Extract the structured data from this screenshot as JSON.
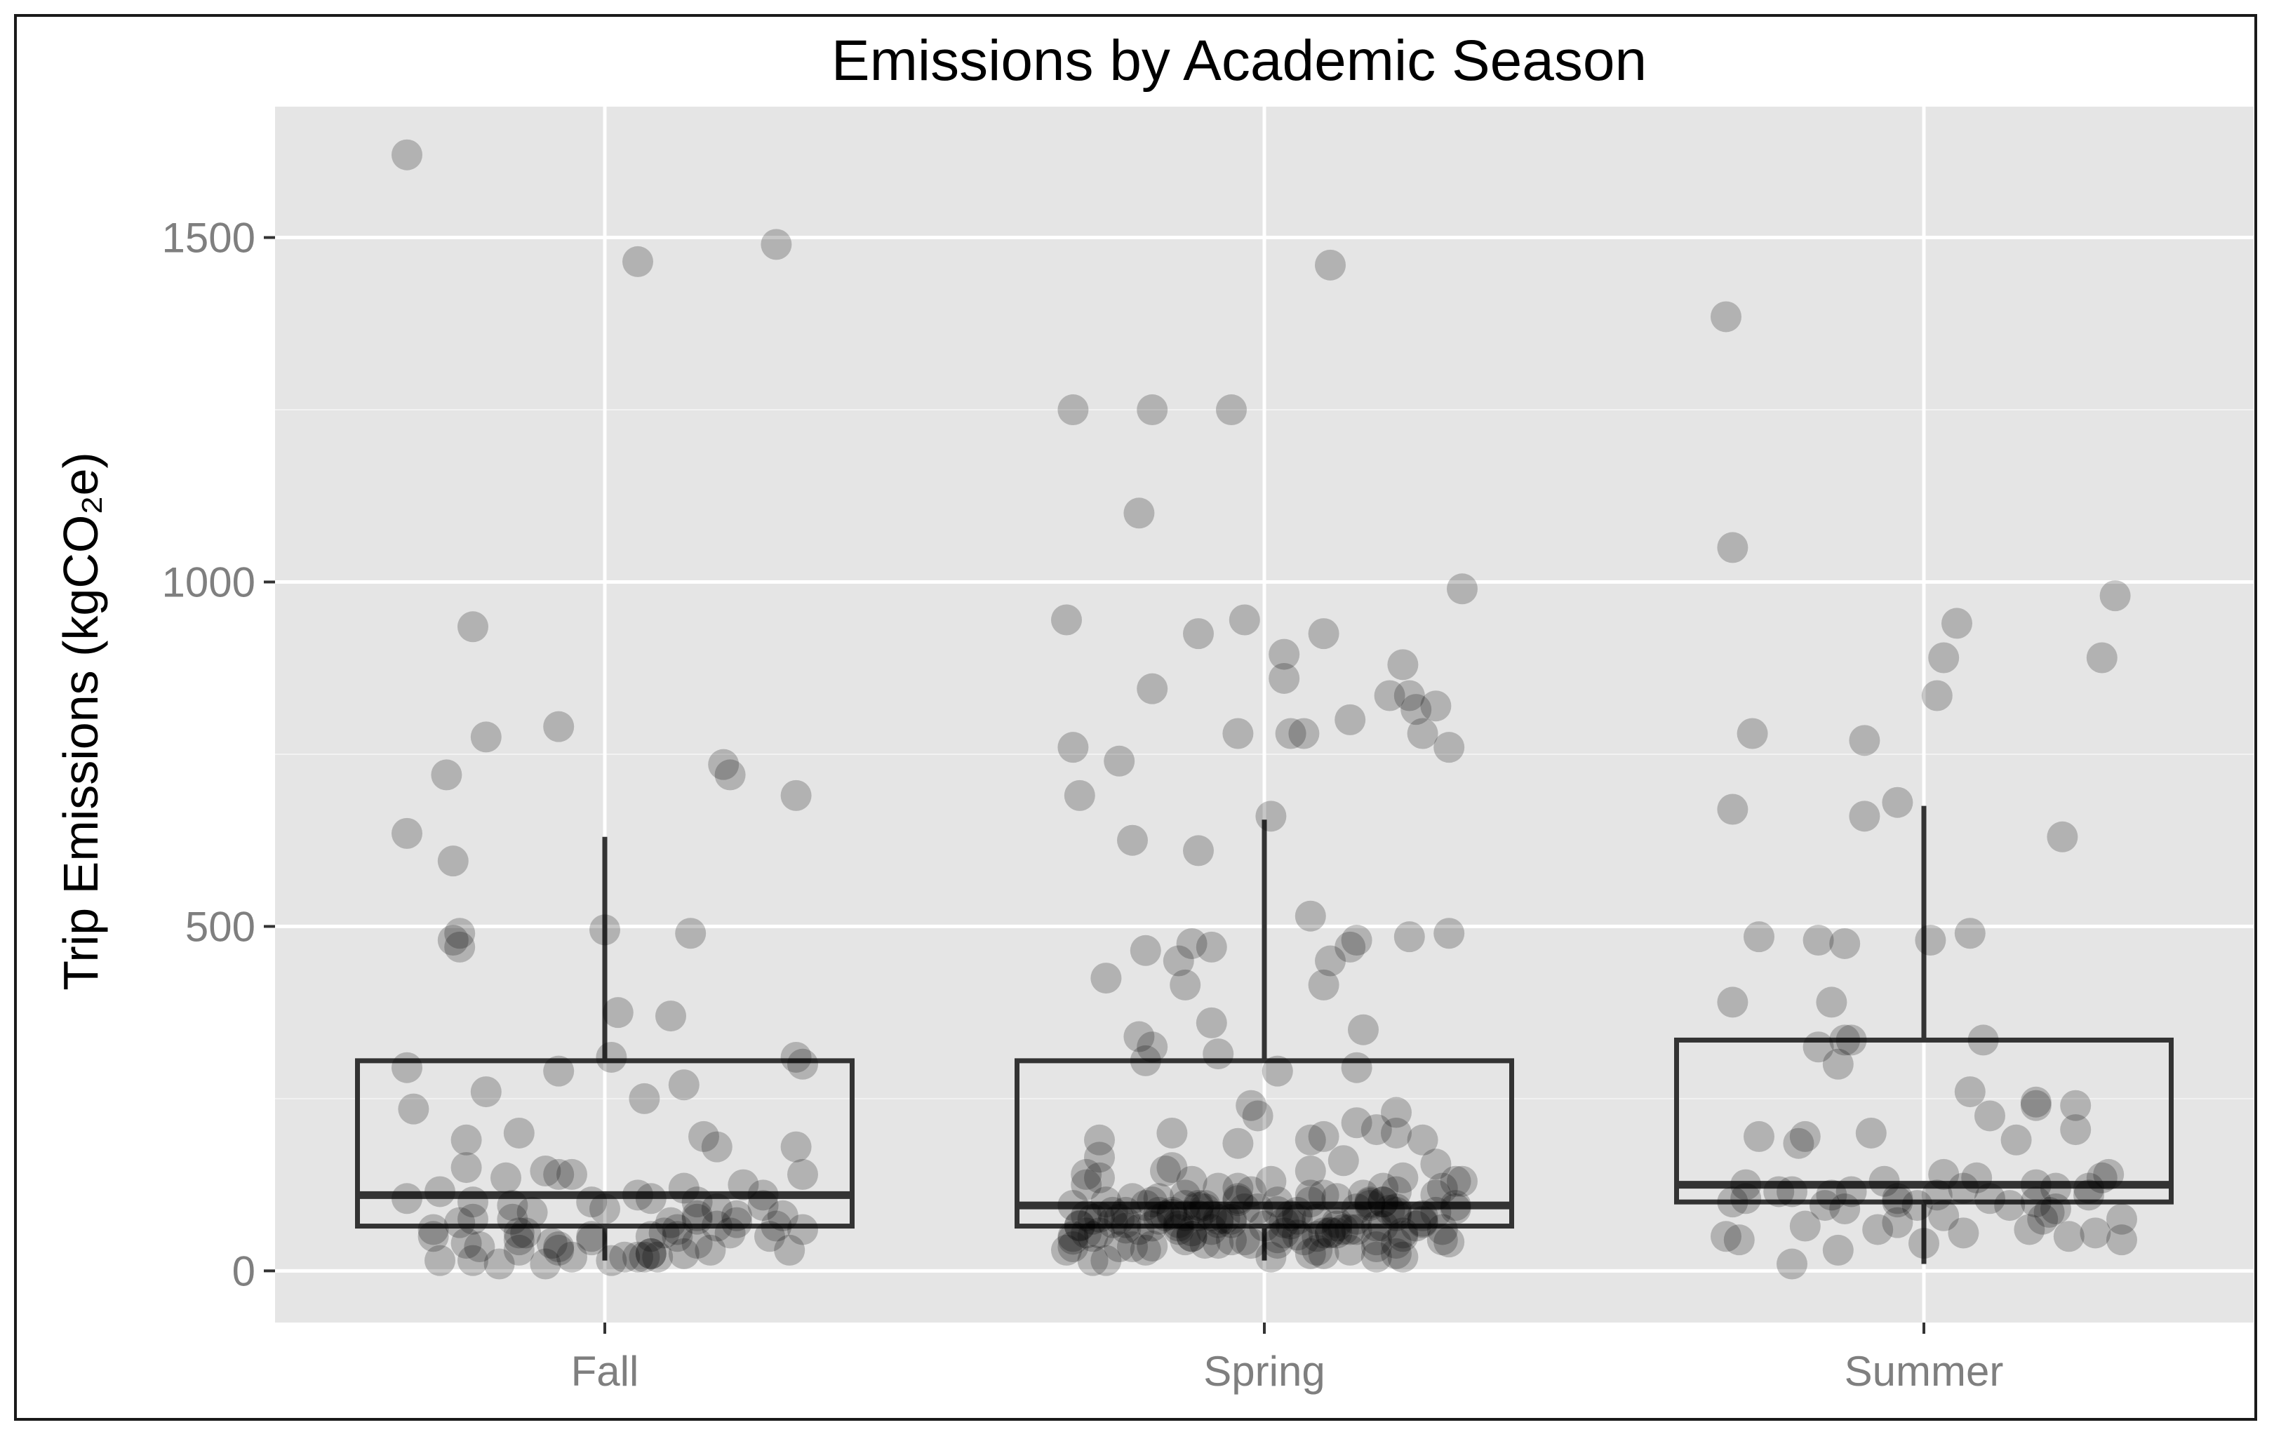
{
  "chart_data": {
    "type": "box",
    "title": "Emissions by Academic Season",
    "xlabel": "",
    "ylabel": "Trip Emissions (kgCO₂e)",
    "ylim": [
      -75,
      1690
    ],
    "yticks": [
      0,
      500,
      1000,
      1500
    ],
    "grid": true,
    "legend": "none",
    "categories": [
      "Fall",
      "Spring",
      "Summer"
    ],
    "boxes": [
      {
        "category": "Fall",
        "whisker_low": 15,
        "q1": 65,
        "median": 110,
        "q3": 305,
        "whisker_high": 630
      },
      {
        "category": "Spring",
        "whisker_low": 15,
        "q1": 65,
        "median": 95,
        "q3": 305,
        "whisker_high": 655
      },
      {
        "category": "Summer",
        "whisker_low": 10,
        "q1": 100,
        "median": 125,
        "q3": 335,
        "whisker_high": 675
      }
    ],
    "points": [
      {
        "category": "Fall",
        "jitter": [
          -0.3,
          0.26,
          0.05,
          -0.2,
          -0.07,
          -0.18,
          0.18,
          -0.24,
          0.19,
          0.29,
          -0.3,
          -0.23,
          0.0,
          0.13,
          -0.22,
          -0.23,
          -0.22,
          0.1,
          0.02,
          0.01,
          0.29,
          0.3,
          -0.3,
          -0.07,
          0.12,
          -0.18,
          0.06,
          -0.29,
          -0.13,
          0.15,
          -0.21,
          0.17,
          0.29,
          -0.21,
          -0.09,
          0.3,
          -0.07,
          -0.05,
          -0.15,
          0.21,
          0.12,
          -0.25,
          0.05,
          0.24,
          0.07,
          -0.3,
          -0.02,
          -0.2,
          -0.14,
          0.24,
          0.17,
          0.0,
          -0.11,
          0.27,
          0.14,
          -0.2,
          0.14,
          -0.14,
          0.1,
          -0.22,
          0.2,
          0.17,
          0.26,
          -0.26,
          0.11,
          0.3,
          -0.13,
          0.09,
          0.19,
          -0.12,
          0.25,
          0.11,
          -0.26,
          -0.02,
          0.07,
          -0.13,
          -0.02,
          0.14,
          -0.21,
          -0.08,
          -0.07,
          -0.19,
          -0.07,
          -0.13,
          0.16,
          0.28,
          0.12,
          0.07,
          0.07,
          -0.05,
          0.08,
          0.06,
          0.05,
          0.03,
          -0.25,
          -0.2,
          0.01,
          -0.16,
          -0.09,
          0.14,
          0.2
        ],
        "values": [
          1620,
          1490,
          1465,
          935,
          790,
          775,
          735,
          720,
          720,
          690,
          635,
          595,
          495,
          490,
          490,
          480,
          470,
          370,
          375,
          310,
          310,
          300,
          295,
          290,
          270,
          260,
          250,
          235,
          200,
          195,
          190,
          180,
          180,
          150,
          145,
          140,
          140,
          140,
          135,
          125,
          120,
          115,
          110,
          110,
          105,
          105,
          100,
          100,
          95,
          95,
          90,
          90,
          85,
          80,
          80,
          75,
          75,
          75,
          70,
          70,
          70,
          65,
          65,
          60,
          60,
          60,
          55,
          55,
          55,
          55,
          50,
          50,
          50,
          50,
          50,
          45,
          45,
          40,
          40,
          40,
          35,
          35,
          30,
          30,
          30,
          30,
          25,
          25,
          25,
          20,
          20,
          20,
          20,
          20,
          15,
          15,
          15,
          10,
          10,
          100,
          80
        ]
      },
      {
        "category": "Spring",
        "jitter": [
          0.1,
          -0.29,
          -0.17,
          -0.05,
          -0.19,
          0.3,
          -0.3,
          -0.03,
          0.09,
          -0.1,
          0.03,
          0.21,
          0.03,
          -0.17,
          0.22,
          0.19,
          0.26,
          0.23,
          0.13,
          0.04,
          -0.04,
          0.06,
          0.24,
          0.28,
          -0.29,
          -0.22,
          -0.28,
          0.01,
          -0.2,
          -0.1,
          0.07,
          0.28,
          0.22,
          0.14,
          -0.11,
          0.13,
          -0.08,
          -0.18,
          0.1,
          -0.13,
          -0.24,
          0.09,
          -0.12,
          -0.08,
          0.15,
          -0.19,
          -0.17,
          -0.07,
          -0.18,
          0.14,
          0.02,
          -0.02,
          0.2,
          -0.01,
          0.14,
          0.17,
          0.2,
          -0.14,
          0.09,
          -0.25,
          0.24,
          0.07,
          -0.04,
          -0.25,
          0.12,
          0.26,
          -0.14,
          0.07,
          -0.15,
          -0.27,
          -0.25,
          0.21,
          0.3,
          -0.11,
          0.29,
          0.01,
          -0.27,
          0.18,
          0.27,
          -0.04,
          -0.02,
          0.2,
          0.09,
          -0.12,
          0.26,
          0.15,
          -0.2,
          0.11,
          -0.04,
          0.07,
          -0.17,
          0.16,
          -0.24,
          0.02,
          0.18,
          -0.09,
          -0.18,
          -0.1,
          0.29,
          0.16,
          -0.29,
          0.29,
          -0.09,
          0.2,
          -0.03,
          0.14,
          -0.16,
          0.05,
          -0.23,
          -0.14,
          -0.21,
          0.2,
          -0.08,
          -0.15,
          0.24,
          0.04,
          -0.1,
          -0.12,
          -0.27,
          0.08,
          0.14,
          -0.22,
          -0.05,
          -0.26,
          -0.16,
          0.05,
          0.24,
          0.03,
          -0.13,
          -0.05,
          -0.07,
          0.11,
          -0.21,
          0.11,
          0.18,
          -0.13,
          -0.17,
          -0.28,
          0.17,
          0.23,
          0.14,
          0.13,
          0.27,
          -0.13,
          -0.19,
          -0.08,
          0.11,
          0.21,
          -0.25,
          -0.27,
          0.03,
          0.1,
          0.08,
          -0.11,
          -0.26,
          0.21,
          -0.29,
          -0.11,
          0.27,
          0.06,
          0.17,
          -0.05,
          -0.03,
          -0.12,
          -0.07,
          0.2,
          -0.02,
          0.02,
          -0.09,
          -0.2,
          -0.29,
          -0.22,
          0.17,
          0.08,
          -0.3,
          0.13,
          -0.18,
          0.07,
          0.09,
          0.2,
          0.21,
          0.01,
          0.17,
          -0.26,
          -0.24,
          0.18,
          -0.01,
          0.2,
          -0.23,
          0.12,
          0.07,
          -0.12,
          0.26,
          -0.07,
          0.0,
          0.09,
          -0.07,
          -0.16,
          0.19,
          -0.25,
          0.04,
          -0.11,
          0.02,
          0.16,
          -0.1,
          -0.14,
          0.24,
          -0.21,
          0.05,
          0.28,
          -0.04,
          0.02,
          -0.06,
          -0.28
        ],
        "values": [
          1460,
          1250,
          1250,
          1250,
          1100,
          990,
          945,
          945,
          925,
          925,
          895,
          880,
          860,
          845,
          835,
          835,
          820,
          815,
          800,
          780,
          780,
          780,
          780,
          760,
          760,
          740,
          690,
          660,
          625,
          610,
          515,
          490,
          485,
          480,
          475,
          470,
          470,
          465,
          450,
          450,
          425,
          415,
          415,
          360,
          350,
          340,
          325,
          315,
          305,
          295,
          290,
          240,
          230,
          225,
          215,
          205,
          200,
          200,
          195,
          190,
          190,
          190,
          185,
          165,
          160,
          155,
          150,
          145,
          145,
          140,
          135,
          135,
          130,
          130,
          130,
          130,
          125,
          120,
          120,
          120,
          115,
          115,
          110,
          110,
          110,
          110,
          105,
          105,
          105,
          100,
          100,
          100,
          100,
          100,
          100,
          95,
          95,
          95,
          95,
          95,
          95,
          90,
          90,
          90,
          90,
          90,
          85,
          85,
          85,
          85,
          85,
          85,
          80,
          80,
          80,
          80,
          80,
          80,
          80,
          75,
          75,
          75,
          75,
          75,
          75,
          75,
          70,
          70,
          70,
          70,
          70,
          70,
          70,
          65,
          65,
          65,
          65,
          65,
          65,
          65,
          60,
          60,
          60,
          60,
          60,
          60,
          55,
          55,
          55,
          55,
          55,
          55,
          50,
          50,
          50,
          50,
          50,
          50,
          45,
          45,
          45,
          45,
          45,
          45,
          40,
          40,
          40,
          40,
          40,
          35,
          35,
          35,
          35,
          30,
          30,
          30,
          30,
          25,
          25,
          25,
          20,
          20,
          20,
          15,
          15,
          100,
          90,
          80,
          70,
          60,
          110,
          95,
          85,
          75,
          65,
          55,
          120,
          105,
          88,
          78,
          68,
          58,
          48,
          98,
          92,
          82,
          72,
          62,
          52,
          42,
          102,
          86,
          76,
          66,
          56,
          46,
          36
        ]
      },
      {
        "category": "Summer",
        "jitter": [
          -0.3,
          -0.29,
          0.29,
          0.05,
          0.03,
          0.27,
          0.02,
          -0.26,
          -0.09,
          -0.04,
          -0.29,
          -0.09,
          0.21,
          0.07,
          -0.25,
          0.01,
          -0.16,
          -0.12,
          -0.29,
          -0.14,
          0.09,
          -0.12,
          -0.11,
          -0.16,
          -0.13,
          0.07,
          0.17,
          0.17,
          0.23,
          0.1,
          0.23,
          -0.08,
          -0.25,
          -0.18,
          0.14,
          -0.19,
          0.28,
          0.03,
          0.08,
          0.27,
          -0.06,
          0.17,
          -0.27,
          0.06,
          0.2,
          -0.11,
          -0.2,
          0.25,
          0.02,
          0.1,
          -0.04,
          -0.29,
          0.17,
          -0.01,
          0.13,
          -0.12,
          0.2,
          0.19,
          0.03,
          0.3,
          0.18,
          -0.04,
          -0.18,
          0.16,
          -0.07,
          0.26,
          0.06,
          0.22,
          -0.3,
          0.3,
          -0.28,
          0.0,
          -0.13,
          -0.2,
          -0.04,
          -0.14,
          0.25,
          -0.15,
          -0.27,
          -0.22
        ],
        "values": [
          1385,
          1050,
          980,
          940,
          890,
          890,
          835,
          780,
          770,
          680,
          670,
          660,
          630,
          490,
          485,
          480,
          480,
          475,
          390,
          390,
          335,
          335,
          335,
          325,
          300,
          260,
          245,
          240,
          240,
          225,
          205,
          200,
          195,
          195,
          190,
          185,
          140,
          140,
          135,
          135,
          130,
          125,
          125,
          120,
          120,
          115,
          115,
          110,
          110,
          105,
          105,
          100,
          100,
          95,
          95,
          90,
          90,
          85,
          80,
          75,
          75,
          70,
          65,
          60,
          60,
          55,
          55,
          50,
          50,
          45,
          45,
          40,
          30,
          10,
          100,
          110,
          120,
          95,
          105,
          115
        ]
      }
    ]
  }
}
